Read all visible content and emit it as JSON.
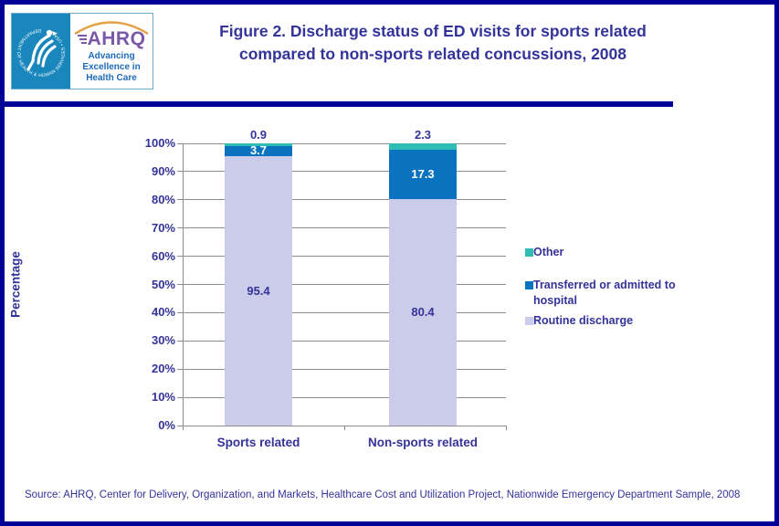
{
  "header": {
    "logo": {
      "ring_text": "DEPARTMENT OF HEALTH & HUMAN SERVICES • USA",
      "acronym": "AHRQ",
      "tagline_line1": "Advancing",
      "tagline_line2": "Excellence in",
      "tagline_line3": "Health Care"
    },
    "title_line1": "Figure 2. Discharge status of ED visits for sports related",
    "title_line2": "compared to non-sports related concussions, 2008"
  },
  "chart_data": {
    "type": "bar",
    "stacked": true,
    "title": "Figure 2. Discharge status of ED visits for sports related compared to non-sports related concussions, 2008",
    "categories": [
      "Sports related",
      "Non-sports related"
    ],
    "series": [
      {
        "name": "Routine discharge",
        "color": "#CBCBEA",
        "values": [
          95.4,
          80.4
        ],
        "label_color": "#333399",
        "label_placement": "inside"
      },
      {
        "name": "Transferred or admitted to hospital",
        "color": "#0A73BF",
        "values": [
          3.7,
          17.3
        ],
        "label_color": "#FFFFFF",
        "label_placement": "inside"
      },
      {
        "name": "Other",
        "color": "#30BDB5",
        "values": [
          0.9,
          2.3
        ],
        "label_color": "#333399",
        "label_placement": "above"
      }
    ],
    "xlabel": "",
    "ylabel": "Percentage",
    "ylim": [
      0,
      100
    ],
    "ytick_step": 10,
    "ytick_suffix": "%",
    "grid": true,
    "legend_position": "right",
    "legend_order": [
      "Other",
      "Transferred or admitted to hospital",
      "Routine discharge"
    ]
  },
  "footer": {
    "source": "Source: AHRQ, Center for Delivery, Organization, and Markets, Healthcare Cost and Utilization Project, Nationwide Emergency Department Sample, 2008"
  },
  "colors": {
    "border_navy": "#000099",
    "text_navy": "#333399",
    "grid_gray": "#8C8C8C",
    "logo_panel_blue": "#1986BC",
    "ahrq_purple": "#7B57A8",
    "tagline_blue": "#1E6CB6",
    "arc_orange": "#E2962F"
  }
}
